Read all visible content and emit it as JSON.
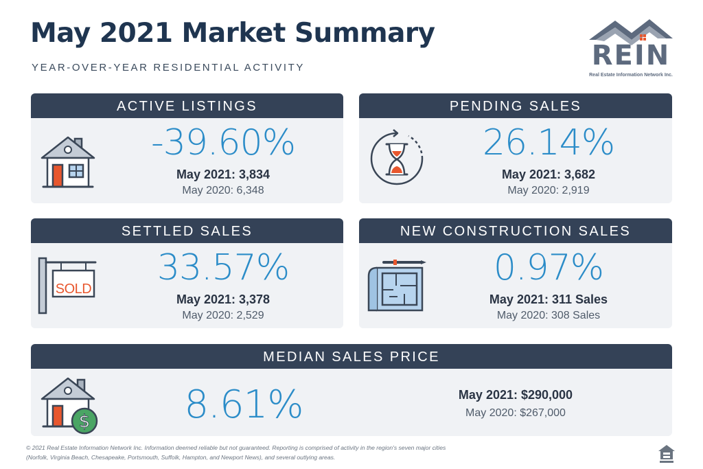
{
  "header": {
    "title": "May 2021 Market Summary",
    "subtitle": "YEAR-OVER-YEAR RESIDENTIAL ACTIVITY"
  },
  "logo": {
    "name": "REIN",
    "tagline": "Real Estate Information Network Inc."
  },
  "colors": {
    "header_bar": "#344257",
    "card_bg": "#f0f2f5",
    "percent": "#2b8cc8",
    "title": "#1f3550",
    "accent_orange": "#e8572e"
  },
  "cards": {
    "active_listings": {
      "label": "ACTIVE LISTINGS",
      "percent": "-39.60%",
      "current": "May 2021: 3,834",
      "previous": "May 2020: 6,348",
      "icon": "house-icon"
    },
    "pending_sales": {
      "label": "PENDING SALES",
      "percent": "26.14%",
      "current": "May 2021: 3,682",
      "previous": "May 2020: 2,919",
      "icon": "hourglass-icon"
    },
    "settled_sales": {
      "label": "SETTLED SALES",
      "percent": "33.57%",
      "current": "May 2021: 3,378",
      "previous": "May 2020: 2,529",
      "icon": "sold-sign-icon",
      "sign_text": "SOLD"
    },
    "new_construction_sales": {
      "label": "NEW CONSTRUCTION SALES",
      "percent": "0.97%",
      "current": "May 2021: 311 Sales",
      "previous": "May 2020: 308 Sales",
      "icon": "blueprint-icon"
    },
    "median_sales_price": {
      "label": "MEDIAN SALES PRICE",
      "percent": "8.61%",
      "current": "May 2021: $290,000",
      "previous": "May 2020: $267,000",
      "icon": "house-dollar-icon"
    }
  },
  "footer": {
    "line1": "© 2021 Real Estate Information Network Inc. Information deemed reliable but not guaranteed. Reporting is comprised of activity in the region's seven major cities",
    "line2": "(Norfolk, Virginia Beach, Chesapeake, Portsmouth, Suffolk, Hampton, and Newport News), and several outlying areas."
  }
}
